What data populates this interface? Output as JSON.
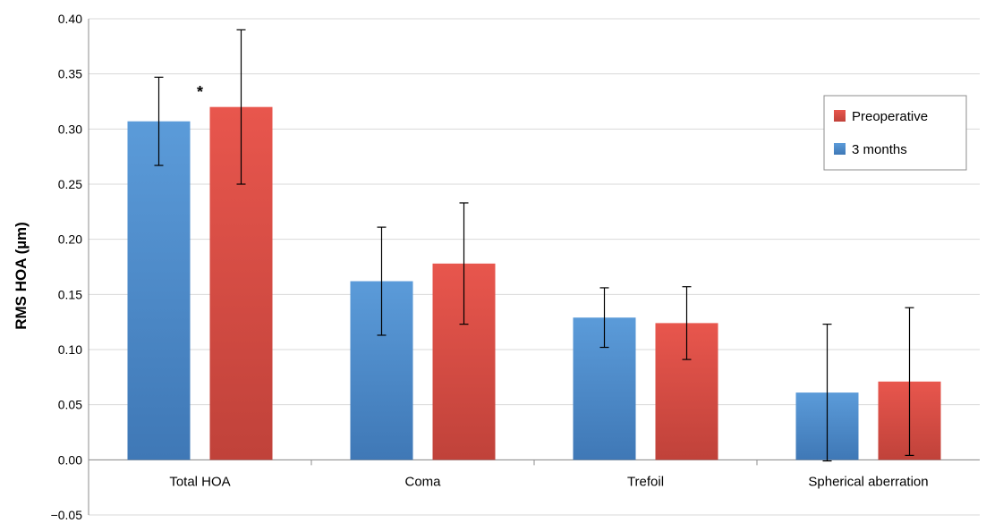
{
  "chart_data": {
    "type": "bar",
    "ylabel": "RMS HOA (µm)",
    "ylim": [
      -0.05,
      0.4
    ],
    "ytick_step": 0.05,
    "grid": true,
    "legend_placement": "top-right",
    "categories": [
      "Total HOA",
      "Coma",
      "Trefoil",
      "Spherical aberration"
    ],
    "series": [
      {
        "name": "3 months",
        "color": "#4a86c7",
        "values": [
          0.307,
          0.162,
          0.129,
          0.061
        ],
        "errors": [
          0.04,
          0.049,
          0.027,
          0.062
        ]
      },
      {
        "name": "Preoperative",
        "color": "#d9534a",
        "values": [
          0.32,
          0.178,
          0.124,
          0.071
        ],
        "errors": [
          0.07,
          0.055,
          0.033,
          0.067
        ]
      }
    ],
    "legend_order": [
      "Preoperative",
      "3 months"
    ],
    "annotations": [
      {
        "text": "*",
        "category": "Total HOA",
        "y": 0.335
      }
    ]
  }
}
